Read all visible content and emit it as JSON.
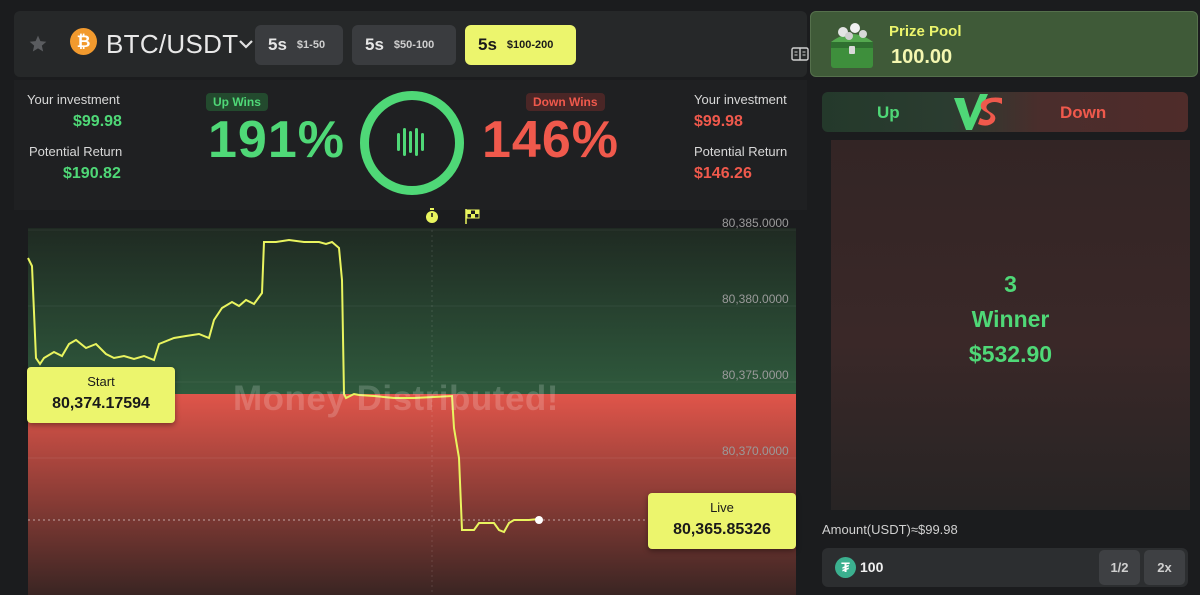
{
  "header": {
    "pair": "BTC/USDT",
    "coin_symbol": "₿",
    "timeframes": [
      {
        "sec": "5s",
        "range": "$1-50",
        "active": false
      },
      {
        "sec": "5s",
        "range": "$50-100",
        "active": false
      },
      {
        "sec": "5s",
        "range": "$100-200",
        "active": true
      }
    ]
  },
  "stats": {
    "left": {
      "investment_label": "Your investment",
      "investment": "$99.98",
      "return_label": "Potential Return",
      "return": "$190.82"
    },
    "right": {
      "investment_label": "Your investment",
      "investment": "$99.98",
      "return_label": "Potential Return",
      "return": "$146.26"
    },
    "up_tag": "Up Wins",
    "down_tag": "Down Wins",
    "up_pct": "191%",
    "down_pct": "146%"
  },
  "chart": {
    "y_ticks": [
      "80,385.0000",
      "80,380.0000",
      "80,375.0000",
      "80,370.0000"
    ],
    "start_label": "Start",
    "start_value": "80,374.17594",
    "live_label": "Live",
    "live_value": "80,365.85326",
    "overlay": "Money Distributed!",
    "colors": {
      "line": "#e9f45f",
      "up_zone": "#2f5a3d",
      "down_zone": "#e0554a"
    }
  },
  "prize_pool": {
    "label": "Prize Pool",
    "value": "100.00"
  },
  "versus": {
    "up": "Up",
    "down": "Down"
  },
  "winner": {
    "count": "3",
    "label": "Winner",
    "amount": "$532.90"
  },
  "amount": {
    "label": "Amount(USDT)≈$99.98",
    "value": "100",
    "half": "1/2",
    "double": "2x"
  }
}
